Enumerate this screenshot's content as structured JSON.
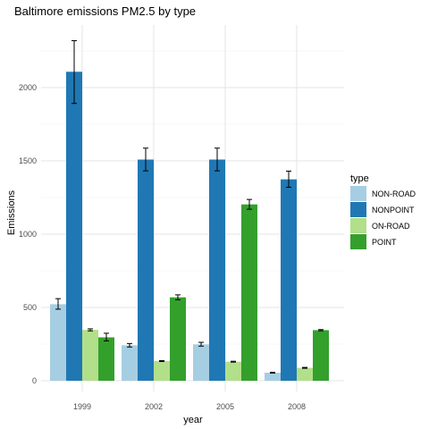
{
  "chart_data": {
    "type": "bar",
    "title": "Baltimore emissions PM2.5 by type",
    "xlabel": "year",
    "ylabel": "Emissions",
    "categories": [
      "1999",
      "2002",
      "2005",
      "2008"
    ],
    "ylim": [
      -50,
      2500
    ],
    "y_ticks": [
      0,
      500,
      1000,
      1500,
      2000
    ],
    "grid": true,
    "legend_title": "type",
    "legend_position": "right",
    "series": [
      {
        "name": "NON-ROAD",
        "color": "#a6cee3",
        "values": [
          522,
          242,
          248,
          55
        ],
        "errors": [
          [
            488,
            560
          ],
          [
            230,
            254
          ],
          [
            236,
            262
          ],
          [
            52,
            58
          ]
        ]
      },
      {
        "name": "NONPOINT",
        "color": "#1f78b4",
        "values": [
          2108,
          1509,
          1509,
          1374
        ],
        "errors": [
          [
            1892,
            2320
          ],
          [
            1432,
            1587
          ],
          [
            1432,
            1587
          ],
          [
            1320,
            1430
          ]
        ]
      },
      {
        "name": "ON-ROAD",
        "color": "#b2df8a",
        "values": [
          347,
          134,
          130,
          88
        ],
        "errors": [
          [
            340,
            354
          ],
          [
            131,
            137
          ],
          [
            127,
            133
          ],
          [
            85,
            91
          ]
        ]
      },
      {
        "name": "POINT",
        "color": "#33a02c",
        "values": [
          296,
          569,
          1203,
          345
        ],
        "errors": [
          [
            272,
            324
          ],
          [
            552,
            586
          ],
          [
            1170,
            1237
          ],
          [
            341,
            349
          ]
        ]
      }
    ]
  }
}
